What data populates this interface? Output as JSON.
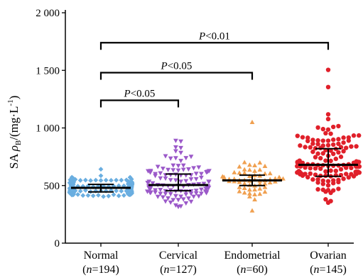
{
  "chart_data": {
    "type": "scatter",
    "title": "",
    "ylabel": {
      "prefix": "SA ",
      "rho": "ρ",
      "sub": "B",
      "unit_open": "/(mg·L",
      "sup": "-1",
      "unit_close": ")"
    },
    "xlabel": "",
    "ylim": [
      0,
      2000
    ],
    "yticks": [
      0,
      500,
      1000,
      1500,
      2000
    ],
    "ytick_labels": [
      "0",
      "500",
      "1 000",
      "1 500",
      "2 000"
    ],
    "grid": false,
    "categories": [
      {
        "name": "Normal",
        "n_label": "n",
        "n_value": "=194"
      },
      {
        "name": "Cervical",
        "n_label": "n",
        "n_value": "=127"
      },
      {
        "name": "Endometrial",
        "n_label": "n",
        "n_value": "=60"
      },
      {
        "name": "Ovarian",
        "n_label": "n",
        "n_value": "=145"
      }
    ],
    "series": [
      {
        "category": "Normal",
        "n": 194,
        "marker": "diamond",
        "color": "#6aaee0",
        "median": 480,
        "q1": 445,
        "q3": 510,
        "min": 410,
        "max": 640
      },
      {
        "category": "Cervical",
        "n": 127,
        "marker": "triangle-down",
        "color": "#9b59c9",
        "median": 505,
        "q1": 455,
        "q3": 600,
        "min": 310,
        "max": 890
      },
      {
        "category": "Endometrial",
        "n": 60,
        "marker": "triangle-up",
        "color": "#f0a050",
        "median": 545,
        "q1": 500,
        "q3": 590,
        "min": 280,
        "max": 1050
      },
      {
        "category": "Ovarian",
        "n": 145,
        "marker": "circle",
        "color": "#e0202a",
        "median": 680,
        "q1": 580,
        "q3": 820,
        "min": 350,
        "max": 1510
      }
    ],
    "annotations": [
      {
        "label": "P",
        "value": "<0.05",
        "from": "Normal",
        "to": "Cervical",
        "y": 1240
      },
      {
        "label": "P",
        "value": "<0.05",
        "from": "Normal",
        "to": "Endometrial",
        "y": 1480
      },
      {
        "label": "P",
        "value": "<0.01",
        "from": "Normal",
        "to": "Ovarian",
        "y": 1740
      }
    ]
  }
}
